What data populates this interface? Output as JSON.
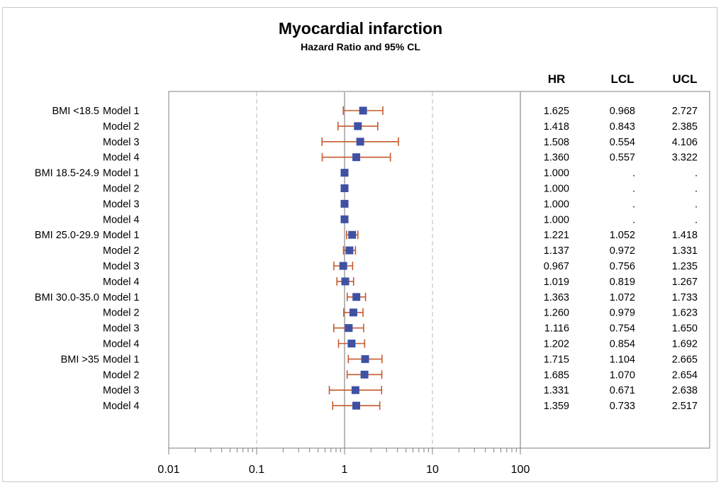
{
  "title": "Myocardial infarction",
  "subtitle": "Hazard Ratio and 95% CL",
  "colors": {
    "marker": "#3f51a3",
    "ci": "#c65a2e",
    "axis": "#808080",
    "refline": "#b8b8b8"
  },
  "chart_data": {
    "type": "forest",
    "title": "Myocardial infarction",
    "subtitle": "Hazard Ratio and 95% CL",
    "x_scale": "log10",
    "xlim": [
      0.01,
      100
    ],
    "x_ticks": [
      "0.01",
      "0.1",
      "1",
      "10",
      "100"
    ],
    "grid": "dashed reference lines at 0.1 and 10, solid line at 1",
    "columns": [
      "HR",
      "LCL",
      "UCL"
    ],
    "rows": [
      {
        "group": "BMI <18.5",
        "model": "Model 1",
        "hr": "1.625",
        "lcl": "0.968",
        "ucl": "2.727"
      },
      {
        "group": "",
        "model": "Model 2",
        "hr": "1.418",
        "lcl": "0.843",
        "ucl": "2.385"
      },
      {
        "group": "",
        "model": "Model 3",
        "hr": "1.508",
        "lcl": "0.554",
        "ucl": "4.106"
      },
      {
        "group": "",
        "model": "Model 4",
        "hr": "1.360",
        "lcl": "0.557",
        "ucl": "3.322"
      },
      {
        "group": "BMI 18.5-24.9",
        "model": "Model 1",
        "hr": "1.000",
        "lcl": ".",
        "ucl": "."
      },
      {
        "group": "",
        "model": "Model 2",
        "hr": "1.000",
        "lcl": ".",
        "ucl": "."
      },
      {
        "group": "",
        "model": "Model 3",
        "hr": "1.000",
        "lcl": ".",
        "ucl": "."
      },
      {
        "group": "",
        "model": "Model 4",
        "hr": "1.000",
        "lcl": ".",
        "ucl": "."
      },
      {
        "group": "BMI 25.0-29.9",
        "model": "Model 1",
        "hr": "1.221",
        "lcl": "1.052",
        "ucl": "1.418"
      },
      {
        "group": "",
        "model": "Model 2",
        "hr": "1.137",
        "lcl": "0.972",
        "ucl": "1.331"
      },
      {
        "group": "",
        "model": "Model 3",
        "hr": "0.967",
        "lcl": "0.756",
        "ucl": "1.235"
      },
      {
        "group": "",
        "model": "Model 4",
        "hr": "1.019",
        "lcl": "0.819",
        "ucl": "1.267"
      },
      {
        "group": "BMI 30.0-35.0",
        "model": "Model 1",
        "hr": "1.363",
        "lcl": "1.072",
        "ucl": "1.733"
      },
      {
        "group": "",
        "model": "Model 2",
        "hr": "1.260",
        "lcl": "0.979",
        "ucl": "1.623"
      },
      {
        "group": "",
        "model": "Model 3",
        "hr": "1.116",
        "lcl": "0.754",
        "ucl": "1.650"
      },
      {
        "group": "",
        "model": "Model 4",
        "hr": "1.202",
        "lcl": "0.854",
        "ucl": "1.692"
      },
      {
        "group": "BMI >35",
        "model": "Model 1",
        "hr": "1.715",
        "lcl": "1.104",
        "ucl": "2.665"
      },
      {
        "group": "",
        "model": "Model 2",
        "hr": "1.685",
        "lcl": "1.070",
        "ucl": "2.654"
      },
      {
        "group": "",
        "model": "Model 3",
        "hr": "1.331",
        "lcl": "0.671",
        "ucl": "2.638"
      },
      {
        "group": "",
        "model": "Model 4",
        "hr": "1.359",
        "lcl": "0.733",
        "ucl": "2.517"
      }
    ]
  }
}
